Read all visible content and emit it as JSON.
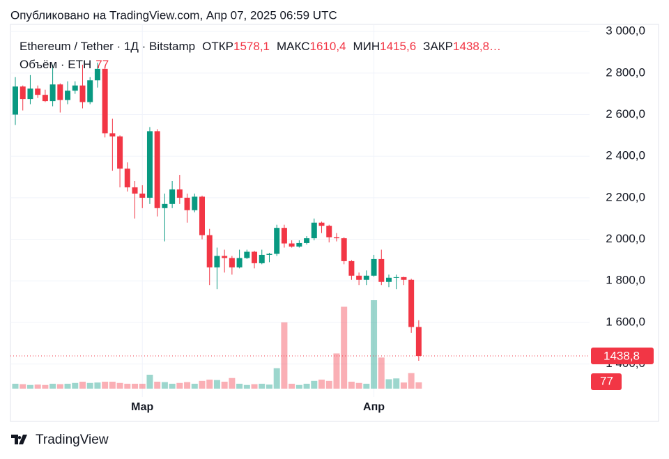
{
  "header": {
    "published": "Опубликовано на TradingView.com, Апр 07, 2025 06:59 UTC"
  },
  "footer": {
    "brand": "TradingView"
  },
  "chart_data": {
    "type": "candlestick",
    "symbol": "Ethereum / Tether · 1Д · Bitstamp",
    "legend_labels": [
      "ОТКР",
      "МАКС",
      "МИН",
      "ЗАКР"
    ],
    "legend_values": [
      {
        "value": 1578.1,
        "label": "1578,1"
      },
      {
        "value": 1610.4,
        "label": "1610,4"
      },
      {
        "value": 1415.6,
        "label": "1415,6"
      },
      {
        "value": 1438.8,
        "label": "1438,8"
      }
    ],
    "volume_title": "Объём · ETH",
    "up_color": "#089981",
    "down_color": "#f23645",
    "categories": [
      null,
      null,
      null,
      null,
      null,
      null,
      null,
      null,
      null,
      null,
      null,
      null,
      null,
      null,
      null,
      null,
      null,
      "Мар",
      null,
      null,
      null,
      null,
      null,
      null,
      null,
      null,
      null,
      null,
      null,
      null,
      null,
      null,
      null,
      null,
      null,
      null,
      null,
      null,
      null,
      null,
      null,
      null,
      null,
      null,
      null,
      null,
      null,
      null,
      "Апр",
      null,
      null,
      null,
      null,
      null,
      null
    ],
    "open": [
      2600,
      2735,
      2675,
      2725,
      2695,
      2665,
      2745,
      2670,
      2715,
      2740,
      2660,
      2765,
      2820,
      2510,
      2495,
      2340,
      2250,
      2220,
      2200,
      2520,
      2150,
      2170,
      2240,
      2200,
      2140,
      2205,
      2020,
      1865,
      1920,
      1910,
      1865,
      1910,
      1940,
      1885,
      1925,
      1930,
      2055,
      1980,
      1965,
      1982,
      2005,
      2080,
      2065,
      2010,
      2005,
      1895,
      1825,
      1805,
      1825,
      1905,
      1795,
      1815,
      1818,
      1805,
      1578.1
    ],
    "high": [
      2780,
      2740,
      2790,
      2740,
      2720,
      2840,
      2750,
      2760,
      2760,
      2840,
      2780,
      2850,
      2830,
      2580,
      2500,
      2370,
      2280,
      2260,
      2540,
      2530,
      2220,
      2280,
      2310,
      2220,
      2220,
      2210,
      2050,
      1960,
      1950,
      1920,
      1950,
      1950,
      1945,
      1950,
      1935,
      2070,
      2070,
      1995,
      1995,
      2015,
      2100,
      2085,
      2070,
      2030,
      2010,
      1900,
      1840,
      1850,
      1925,
      1950,
      1830,
      1830,
      1820,
      1810,
      1610.4
    ],
    "low": [
      2550,
      2620,
      2650,
      2680,
      2660,
      2640,
      2610,
      2650,
      2700,
      2630,
      2650,
      2730,
      2490,
      2330,
      2250,
      2230,
      2100,
      2150,
      2170,
      2110,
      1990,
      2150,
      2170,
      2080,
      2130,
      2000,
      1780,
      1760,
      1840,
      1830,
      1860,
      1905,
      1860,
      1880,
      1890,
      1920,
      1960,
      1960,
      1960,
      1975,
      1995,
      2030,
      1985,
      1990,
      1880,
      1805,
      1780,
      1780,
      1820,
      1780,
      1770,
      1760,
      1780,
      1550,
      1415.6
    ],
    "close": [
      2735,
      2675,
      2725,
      2695,
      2665,
      2745,
      2670,
      2715,
      2740,
      2660,
      2765,
      2820,
      2510,
      2495,
      2340,
      2250,
      2220,
      2200,
      2520,
      2150,
      2170,
      2240,
      2200,
      2140,
      2205,
      2020,
      1865,
      1920,
      1910,
      1865,
      1910,
      1940,
      1885,
      1925,
      1930,
      2055,
      1980,
      1965,
      1982,
      2005,
      2080,
      2065,
      2010,
      2005,
      1895,
      1825,
      1805,
      1825,
      1905,
      1795,
      1815,
      1818,
      1805,
      1578.1,
      1438.8
    ],
    "volume": [
      60,
      55,
      45,
      50,
      45,
      60,
      55,
      60,
      70,
      85,
      70,
      75,
      85,
      85,
      70,
      60,
      60,
      60,
      170,
      85,
      80,
      60,
      70,
      80,
      60,
      95,
      110,
      105,
      85,
      130,
      60,
      45,
      55,
      60,
      50,
      250,
      810,
      60,
      45,
      60,
      95,
      110,
      95,
      430,
      1000,
      85,
      70,
      60,
      1080,
      380,
      115,
      125,
      75,
      190,
      77
    ],
    "ylim": [
      1258,
      3034
    ],
    "yticks": [
      {
        "value": 1400,
        "label": "1 400,0"
      },
      {
        "value": 1600,
        "label": "1 600,0"
      },
      {
        "value": 1800,
        "label": "1 800,0"
      },
      {
        "value": 2000,
        "label": "2 000,0"
      },
      {
        "value": 2200,
        "label": "2 200,0"
      },
      {
        "value": 2400,
        "label": "2 400,0"
      },
      {
        "value": 2600,
        "label": "2 600,0"
      },
      {
        "value": 2800,
        "label": "2 800,0"
      },
      {
        "value": 3000,
        "label": "3 000,0"
      }
    ],
    "grid": true
  }
}
